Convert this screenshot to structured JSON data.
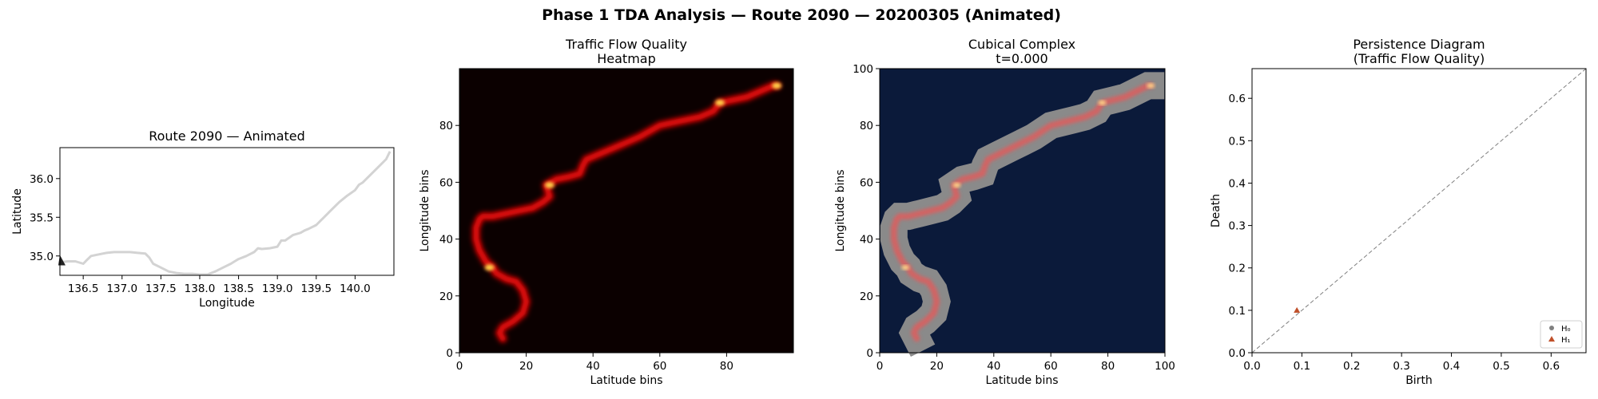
{
  "figure": {
    "suptitle": "Phase 1 TDA Analysis — Route 2090 — 20200305 (Animated)"
  },
  "colors": {
    "route_line": "#d3d3d3",
    "route_marker": "#222222",
    "heatmap_background": "#0b0000",
    "complex_background": "#0b1a3a",
    "complex_filled": "#8a8a8a",
    "h0_color": "#808080",
    "h1_color": "#c0502a",
    "diagonal": "#7f7f7f"
  },
  "chart_data": [
    {
      "id": "route",
      "type": "line",
      "title": "Route 2090 — Animated",
      "xlabel": "Longitude",
      "ylabel": "Latitude",
      "xlim": [
        136.2,
        140.5
      ],
      "ylim": [
        34.75,
        36.4
      ],
      "xticks": [
        "136.5",
        "137.0",
        "137.5",
        "138.0",
        "138.5",
        "139.0",
        "139.5",
        "140.0"
      ],
      "yticks": [
        "35.0",
        "35.5",
        "36.0"
      ],
      "marker_icon": "triangle-marker-icon",
      "series": [
        {
          "x": [
            136.22,
            136.3,
            136.4,
            136.5,
            136.55,
            136.6,
            136.7,
            136.8,
            136.9,
            137.0,
            137.1,
            137.2,
            137.3,
            137.35,
            137.4,
            137.5,
            137.6,
            137.7,
            137.8,
            137.9,
            138.0,
            138.1,
            138.2,
            138.3,
            138.4,
            138.45,
            138.5,
            138.6,
            138.7,
            138.75,
            138.8,
            138.9,
            139.0,
            139.05,
            139.1,
            139.2,
            139.3,
            139.35,
            139.4,
            139.5,
            139.55,
            139.6,
            139.7,
            139.8,
            139.9,
            140.0,
            140.05,
            140.1,
            140.2,
            140.3,
            140.4,
            140.45
          ],
          "y": [
            34.92,
            34.93,
            34.93,
            34.9,
            34.95,
            35.0,
            35.02,
            35.04,
            35.05,
            35.05,
            35.05,
            35.04,
            35.03,
            34.98,
            34.9,
            34.85,
            34.8,
            34.78,
            34.77,
            34.77,
            34.76,
            34.76,
            34.8,
            34.85,
            34.9,
            34.93,
            34.96,
            35.0,
            35.05,
            35.1,
            35.09,
            35.1,
            35.12,
            35.2,
            35.2,
            35.27,
            35.3,
            35.33,
            35.35,
            35.4,
            35.45,
            35.5,
            35.6,
            35.7,
            35.78,
            35.85,
            35.92,
            35.95,
            36.05,
            36.15,
            36.25,
            36.35
          ]
        }
      ]
    },
    {
      "id": "heatmap",
      "type": "heatmap",
      "title": "Traffic Flow Quality\nHeatmap",
      "xlabel": "Latitude bins",
      "ylabel": "Longitude bins",
      "xlim": [
        0,
        100
      ],
      "ylim": [
        0,
        100
      ],
      "xticks": [
        "0",
        "20",
        "40",
        "60",
        "80"
      ],
      "yticks": [
        "0",
        "20",
        "40",
        "60",
        "80"
      ],
      "path": {
        "x": [
          13,
          12,
          13,
          16,
          19,
          20,
          19,
          17,
          14,
          11,
          10,
          8,
          6,
          5,
          5,
          6,
          7,
          10,
          14,
          18,
          22,
          25,
          27,
          26,
          29,
          33,
          36,
          37,
          38,
          42,
          46,
          50,
          54,
          57,
          60,
          64,
          68,
          72,
          76,
          78,
          82,
          86,
          90,
          94,
          95
        ],
        "y": [
          5,
          7,
          9,
          11,
          14,
          18,
          22,
          25,
          26,
          28,
          30,
          32,
          36,
          40,
          44,
          47,
          48,
          48,
          49,
          50,
          51,
          53,
          55,
          59,
          61,
          62,
          63,
          66,
          68,
          70,
          72,
          74,
          76,
          78,
          80,
          81,
          82,
          83,
          85,
          88,
          89,
          90,
          92,
          94,
          94
        ]
      },
      "hotspots": [
        {
          "x": 78,
          "y": 88
        },
        {
          "x": 95,
          "y": 94
        },
        {
          "x": 9,
          "y": 30
        },
        {
          "x": 27,
          "y": 59
        }
      ]
    },
    {
      "id": "cubical",
      "type": "heatmap",
      "title": "Cubical Complex\nt=0.000",
      "xlabel": "Latitude bins",
      "ylabel": "Longitude bins",
      "xlim": [
        0,
        100
      ],
      "ylim": [
        0,
        100
      ],
      "xticks": [
        "0",
        "20",
        "40",
        "60",
        "80",
        "100"
      ],
      "yticks": [
        "0",
        "20",
        "40",
        "60",
        "80",
        "100"
      ]
    },
    {
      "id": "persistence",
      "type": "scatter",
      "title": "Persistence Diagram\n(Traffic Flow Quality)",
      "xlabel": "Birth",
      "ylabel": "Death",
      "xlim": [
        0,
        0.67
      ],
      "ylim": [
        0,
        0.67
      ],
      "xticks": [
        "0.0",
        "0.1",
        "0.2",
        "0.3",
        "0.4",
        "0.5",
        "0.6"
      ],
      "yticks": [
        "0.0",
        "0.1",
        "0.2",
        "0.3",
        "0.4",
        "0.5",
        "0.6"
      ],
      "series": [
        {
          "name": "H₀",
          "marker": "circle",
          "points": []
        },
        {
          "name": "H₁",
          "marker": "triangle",
          "points": [
            {
              "x": 0.09,
              "y": 0.1
            }
          ]
        }
      ],
      "legend": {
        "position": "lower-right",
        "entries": [
          "H₀",
          "H₁"
        ]
      }
    }
  ]
}
